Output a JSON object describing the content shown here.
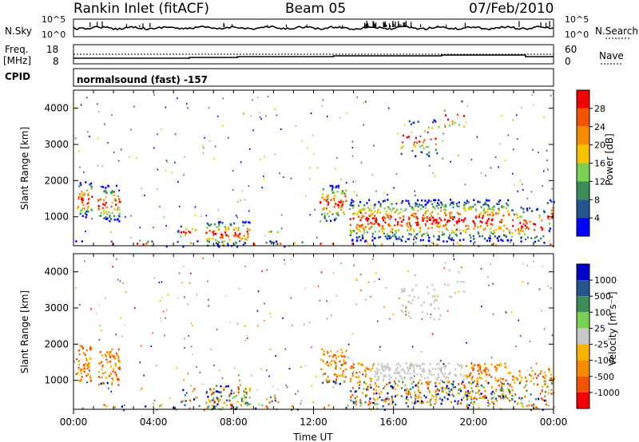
{
  "header": {
    "station": "Rankin Inlet (fitACF)",
    "beam": "Beam 05",
    "date": "07/Feb/2010"
  },
  "top_panel": {
    "left_label": "N.Sky",
    "left_ticks": [
      "10^5",
      "10^0"
    ],
    "right_label": "N.Search",
    "right_ticks": [
      "10^5",
      "10^0"
    ]
  },
  "freq_panel": {
    "left_label_line1": "Freq.",
    "left_label_line2": "[MHz]",
    "left_ticks": [
      "18",
      "8"
    ],
    "right_label": "Nave",
    "right_ticks": [
      "60",
      "0"
    ],
    "cpid_label": "CPID",
    "cpid_text": "normalsound (fast) -157"
  },
  "colors": {
    "power": [
      "#0000ff",
      "#27548c",
      "#3c8c5a",
      "#7bd055",
      "#f7c300",
      "#f58c00",
      "#f25400",
      "#f00000"
    ],
    "velocity": [
      "#f00000",
      "#f25400",
      "#f58c00",
      "#f7b200",
      "#c8c8c8",
      "#7bd055",
      "#3c8c5a",
      "#27548c",
      "#0000c8"
    ]
  },
  "chart_data": [
    {
      "type": "heatmap",
      "name": "power",
      "ylabel": "Slant Range [km]",
      "yticks": [
        "1000",
        "2000",
        "3000",
        "4000"
      ],
      "ylim": [
        200,
        4500
      ],
      "colorbar_label": "Power [dB]",
      "colorbar_ticks": [
        "4",
        "8",
        "12",
        "16",
        "20",
        "24",
        "28"
      ],
      "colorbar_range": [
        0,
        32
      ]
    },
    {
      "type": "heatmap",
      "name": "velocity",
      "ylabel": "Slant Range [km]",
      "yticks": [
        "1000",
        "2000",
        "3000",
        "4000"
      ],
      "ylim": [
        200,
        4500
      ],
      "colorbar_label": "Velocity [m s⁻¹]",
      "colorbar_ticks": [
        "-1000",
        "-500",
        "-100",
        "-25",
        "25",
        "100",
        "500",
        "1000"
      ]
    }
  ],
  "xaxis": {
    "ticks": [
      "00:00",
      "04:00",
      "08:00",
      "12:00",
      "16:00",
      "20:00",
      "00:00"
    ],
    "label": "Time UT"
  }
}
